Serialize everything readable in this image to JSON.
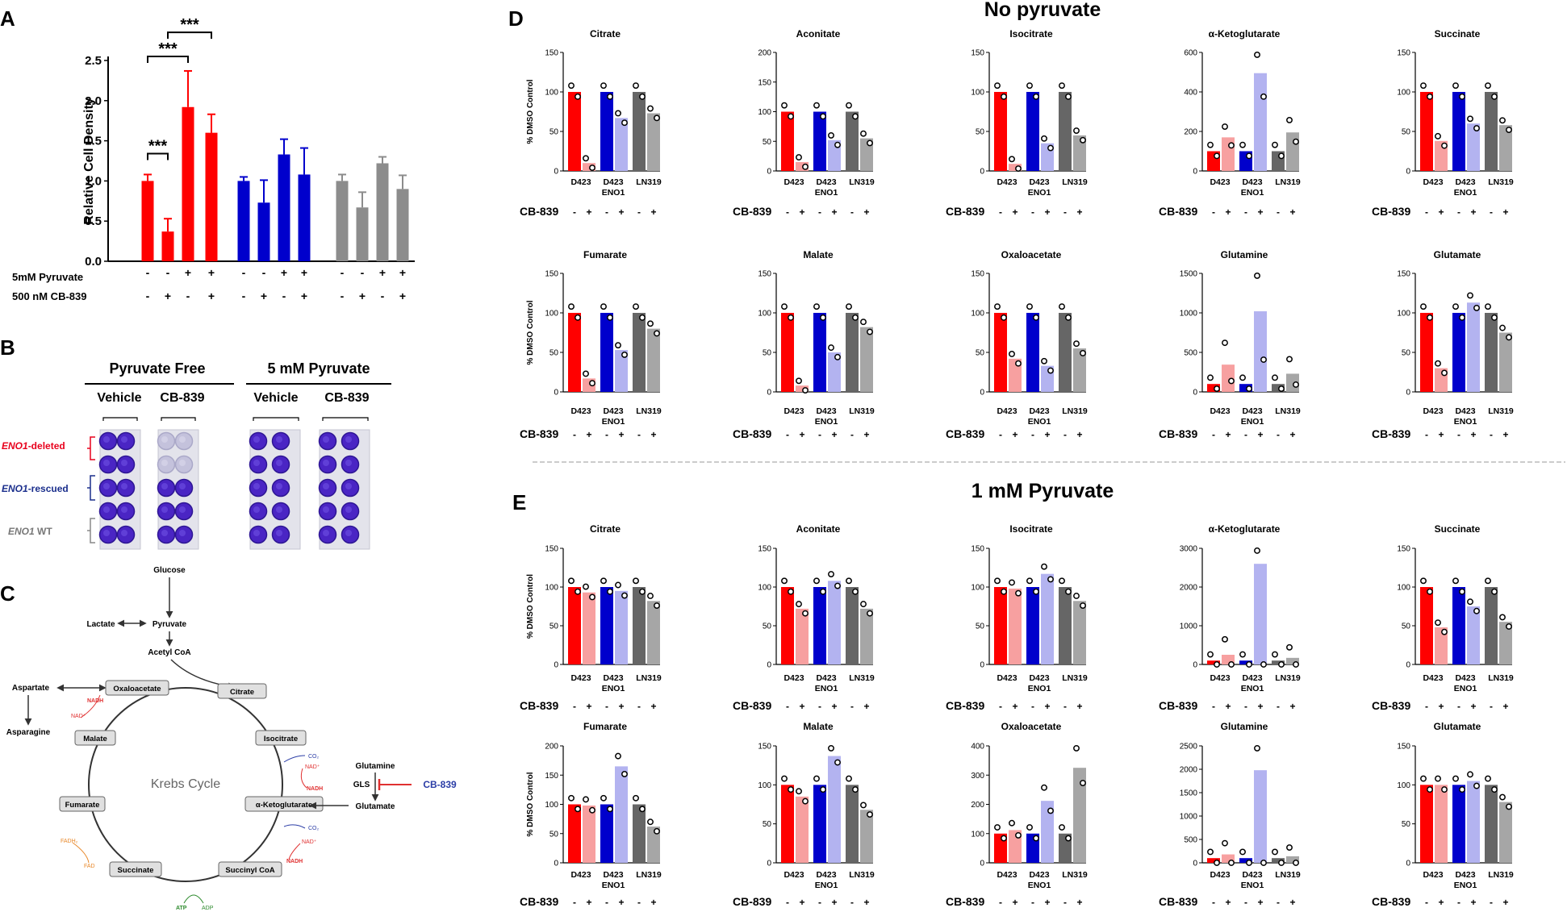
{
  "panels": {
    "A": {
      "letter": "A"
    },
    "B": {
      "letter": "B"
    },
    "C": {
      "letter": "C"
    },
    "D": {
      "letter": "D",
      "title": "No pyruvate"
    },
    "E": {
      "letter": "E",
      "title": "1 mM Pyruvate"
    }
  },
  "panel_a": {
    "ylabel": "Relative Cell Density",
    "yticks": [
      "0.0",
      "0.5",
      "1.0",
      "1.5",
      "2.0",
      "2.5"
    ],
    "row1_label": "5mM Pyruvate",
    "row2_label": "500 nM CB-839",
    "row1_signs": [
      "-",
      "-",
      "+",
      "+",
      "-",
      "-",
      "+",
      "+",
      "-",
      "-",
      "+",
      "+"
    ],
    "row2_signs": [
      "-",
      "+",
      "-",
      "+",
      "-",
      "+",
      "-",
      "+",
      "-",
      "+",
      "-",
      "+"
    ],
    "sig": [
      "***",
      "***",
      "***"
    ],
    "colors": {
      "red": "#FF0000",
      "blue": "#0000CC",
      "gray": "#8C8C8C"
    }
  },
  "panel_b": {
    "group1": "Pyruvate Free",
    "group2": "5 mM Pyruvate",
    "sub1": "Vehicle",
    "sub2": "CB-839",
    "sub3": "Vehicle",
    "sub4": "CB-839",
    "row1": {
      "italic": "ENO1",
      "text": "-deleted",
      "color": "#E8001C"
    },
    "row2": {
      "italic": "ENO1",
      "text": "-rescued",
      "color": "#1A2E8C"
    },
    "row3": {
      "italic": "ENO1",
      "text": " WT",
      "color": "#777777"
    }
  },
  "panel_c": {
    "center": "Krebs Cycle",
    "glucose": "Glucose",
    "lactate": "Lactate",
    "pyruvate": "Pyruvate",
    "acetyl": "Acetyl CoA",
    "aspartate": "Aspartate",
    "asparagine": "Asparagine",
    "glutamine": "Glutamine",
    "gls": "GLS",
    "glutamate": "Glutamate",
    "inhibitor": "CB-839",
    "nodes": [
      "Oxaloacetate",
      "Citrate",
      "Isocitrate",
      "α-Ketoglutarate",
      "Succinyl CoA",
      "Succinate",
      "Fumarate",
      "Malate"
    ],
    "nadh": "NADH",
    "nad": "NAD⁺",
    "co2": "CO₂",
    "fadh2": "FADH₂",
    "fad": "FAD",
    "atp": "ATP",
    "adp": "ADP"
  },
  "common": {
    "ylabel": "% DMSO Control",
    "cats": [
      "D423",
      "D423",
      "ENO1",
      "LN319"
    ],
    "cb_label": "CB-839",
    "signs": [
      "-",
      "+",
      "-",
      "+",
      "-",
      "+"
    ]
  },
  "chart_data": [
    {
      "type": "bar",
      "title": "Relative Cell Density (Panel A)",
      "ylabel": "Relative Cell Density",
      "ylim": [
        0,
        2.5
      ],
      "values": [
        1.0,
        0.37,
        1.92,
        1.6,
        1.0,
        0.73,
        1.33,
        1.08,
        1.0,
        0.67,
        1.22,
        0.9
      ],
      "errors": [
        0.08,
        0.16,
        0.45,
        0.23,
        0.05,
        0.28,
        0.19,
        0.33,
        0.08,
        0.19,
        0.08,
        0.17
      ]
    },
    {
      "type": "bar",
      "panel": "D",
      "title": "Citrate",
      "ylim": [
        0,
        150
      ],
      "yticks": [
        "0",
        "50",
        "100",
        "150"
      ],
      "values": [
        100,
        10,
        100,
        67,
        100,
        73
      ]
    },
    {
      "type": "bar",
      "panel": "D",
      "title": "Aconitate",
      "ylim": [
        0,
        200
      ],
      "yticks": [
        "0",
        "50",
        "100",
        "150",
        "200"
      ],
      "values": [
        100,
        15,
        100,
        52,
        100,
        55
      ]
    },
    {
      "type": "bar",
      "panel": "D",
      "title": "Isocitrate",
      "ylim": [
        0,
        150
      ],
      "yticks": [
        "0",
        "50",
        "100",
        "150"
      ],
      "values": [
        100,
        9,
        100,
        35,
        100,
        45
      ]
    },
    {
      "type": "bar",
      "panel": "D",
      "title": "α-Ketoglutarate",
      "ylim": [
        0,
        600
      ],
      "yticks": [
        "0",
        "200",
        "400",
        "600"
      ],
      "values": [
        100,
        170,
        100,
        495,
        100,
        195
      ]
    },
    {
      "type": "bar",
      "panel": "D",
      "title": "Succinate",
      "ylim": [
        0,
        150
      ],
      "yticks": [
        "0",
        "50",
        "100",
        "150"
      ],
      "values": [
        100,
        38,
        100,
        60,
        100,
        58
      ]
    },
    {
      "type": "bar",
      "panel": "D",
      "title": "Fumarate",
      "ylim": [
        0,
        150
      ],
      "yticks": [
        "0",
        "50",
        "100",
        "150"
      ],
      "values": [
        100,
        17,
        100,
        53,
        100,
        80
      ]
    },
    {
      "type": "bar",
      "panel": "D",
      "title": "Malate",
      "ylim": [
        0,
        150
      ],
      "yticks": [
        "0",
        "50",
        "100",
        "150"
      ],
      "values": [
        100,
        8,
        100,
        50,
        100,
        82
      ]
    },
    {
      "type": "bar",
      "panel": "D",
      "title": "Oxaloacetate",
      "ylim": [
        0,
        150
      ],
      "yticks": [
        "0",
        "50",
        "100",
        "150"
      ],
      "values": [
        100,
        42,
        100,
        33,
        100,
        55
      ]
    },
    {
      "type": "bar",
      "panel": "D",
      "title": "Glutamine",
      "ylim": [
        0,
        1500
      ],
      "yticks": [
        "0",
        "500",
        "1000",
        "1500"
      ],
      "values": [
        100,
        345,
        100,
        1020,
        100,
        230
      ]
    },
    {
      "type": "bar",
      "panel": "D",
      "title": "Glutamate",
      "ylim": [
        0,
        150
      ],
      "yticks": [
        "0",
        "50",
        "100",
        "150"
      ],
      "values": [
        100,
        30,
        100,
        113,
        100,
        75
      ]
    },
    {
      "type": "bar",
      "panel": "E",
      "title": "Citrate",
      "ylim": [
        0,
        150
      ],
      "yticks": [
        "0",
        "50",
        "100",
        "150"
      ],
      "values": [
        100,
        93,
        100,
        95,
        100,
        82
      ]
    },
    {
      "type": "bar",
      "panel": "E",
      "title": "Aconitate",
      "ylim": [
        0,
        150
      ],
      "yticks": [
        "0",
        "50",
        "100",
        "150"
      ],
      "values": [
        100,
        72,
        100,
        108,
        100,
        72
      ]
    },
    {
      "type": "bar",
      "panel": "E",
      "title": "Isocitrate",
      "ylim": [
        0,
        150
      ],
      "yticks": [
        "0",
        "50",
        "100",
        "150"
      ],
      "values": [
        100,
        98,
        100,
        117,
        100,
        82
      ]
    },
    {
      "type": "bar",
      "panel": "E",
      "title": "α-Ketoglutarate",
      "ylim": [
        0,
        3000
      ],
      "yticks": [
        "0",
        "1000",
        "2000",
        "3000"
      ],
      "values": [
        100,
        250,
        100,
        2600,
        100,
        170
      ]
    },
    {
      "type": "bar",
      "panel": "E",
      "title": "Succinate",
      "ylim": [
        0,
        150
      ],
      "yticks": [
        "0",
        "50",
        "100",
        "150"
      ],
      "values": [
        100,
        48,
        100,
        75,
        100,
        55
      ]
    },
    {
      "type": "bar",
      "panel": "E",
      "title": "Fumarate",
      "ylim": [
        0,
        200
      ],
      "yticks": [
        "0",
        "50",
        "100",
        "150",
        "200"
      ],
      "values": [
        100,
        98,
        100,
        165,
        100,
        62
      ]
    },
    {
      "type": "bar",
      "panel": "E",
      "title": "Malate",
      "ylim": [
        0,
        150
      ],
      "yticks": [
        "0",
        "50",
        "100",
        "150"
      ],
      "values": [
        100,
        85,
        100,
        137,
        100,
        68
      ]
    },
    {
      "type": "bar",
      "panel": "E",
      "title": "Oxaloacetate",
      "ylim": [
        0,
        400
      ],
      "yticks": [
        "0",
        "100",
        "200",
        "300",
        "400"
      ],
      "values": [
        100,
        112,
        100,
        212,
        100,
        325
      ]
    },
    {
      "type": "bar",
      "panel": "E",
      "title": "Glutamine",
      "ylim": [
        0,
        2500
      ],
      "yticks": [
        "0",
        "500",
        "1000",
        "1500",
        "2000",
        "2500"
      ],
      "values": [
        100,
        180,
        100,
        1980,
        100,
        140
      ]
    },
    {
      "type": "bar",
      "panel": "E",
      "title": "Glutamate",
      "ylim": [
        0,
        150
      ],
      "yticks": [
        "0",
        "50",
        "100",
        "150"
      ],
      "values": [
        100,
        100,
        100,
        105,
        100,
        78
      ]
    }
  ]
}
